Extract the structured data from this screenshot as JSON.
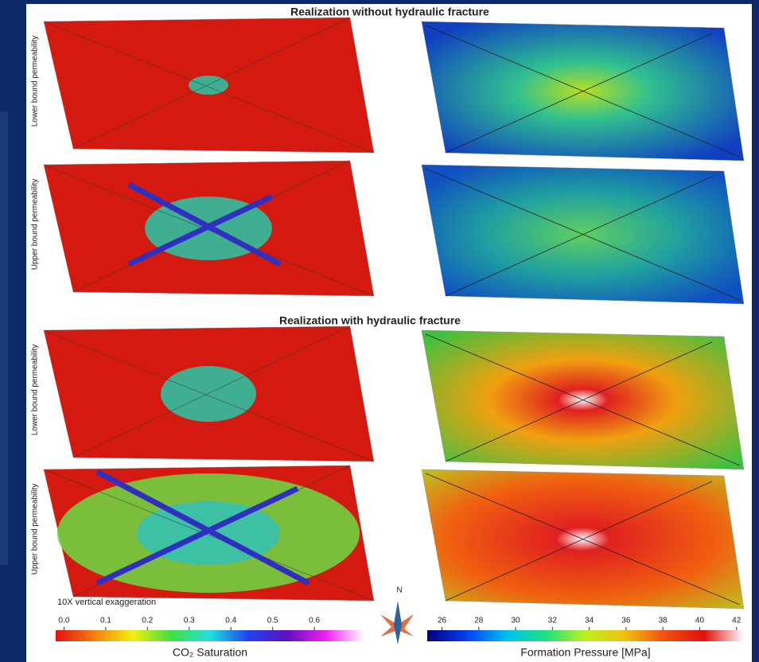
{
  "sections": [
    {
      "title": "Realization without hydraulic fracture",
      "rows": [
        "Lower bound permeability",
        "Upper bound permeability"
      ]
    },
    {
      "title": "Realization with hydraulic fracture",
      "rows": [
        "Lower bound permeability",
        "Upper bound permeability"
      ]
    }
  ],
  "note": "10X vertical exaggeration",
  "compass": "N",
  "colorbars": [
    {
      "label": "CO₂ Saturation",
      "lim": [
        -0.02,
        0.72
      ],
      "ticks": [
        {
          "value": 0,
          "label": "0.0"
        },
        0.1,
        0.2,
        0.3,
        0.4,
        0.5,
        0.6
      ],
      "colors": [
        "#e01010",
        "#f08010",
        "#f0f010",
        "#40e040",
        "#20e0e0",
        "#2040f0",
        "#6010c0",
        "#f020f0",
        "#ffffff"
      ]
    },
    {
      "label": "Formation Pressure [MPa]",
      "lim": [
        25.2,
        42.4
      ],
      "ticks": [
        26,
        28,
        30,
        32,
        34,
        36,
        38,
        40,
        42
      ],
      "colors": [
        "#000080",
        "#0040f0",
        "#00c0f0",
        "#20e080",
        "#c0f020",
        "#f0c010",
        "#f05010",
        "#e01010",
        "#ffffff"
      ]
    }
  ]
}
